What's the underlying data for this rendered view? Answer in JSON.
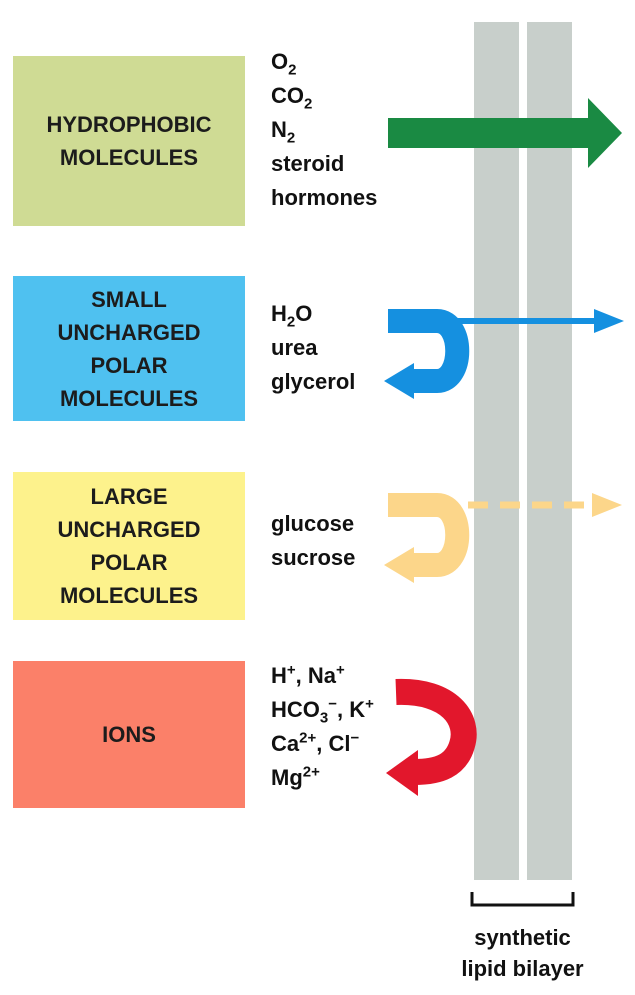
{
  "categories": [
    {
      "box_lines": [
        "HYDROPHOBIC",
        "MOLECULES"
      ],
      "box_color": "#cfdb94",
      "molecules": [
        {
          "base": "O",
          "sub": "2"
        },
        {
          "base": "CO",
          "sub": "2"
        },
        {
          "base": "N",
          "sub": "2"
        },
        {
          "base": "steroid"
        },
        {
          "base": "hormones"
        }
      ],
      "arrow_color": "#1a8a43",
      "outcome": "crosses"
    },
    {
      "box_lines": [
        "SMALL",
        "UNCHARGED",
        "POLAR",
        "MOLECULES"
      ],
      "box_color": "#4fc1f0",
      "molecules": [
        {
          "base": "H",
          "sub": "2",
          "tail": "O"
        },
        {
          "base": "urea"
        },
        {
          "base": "glycerol"
        }
      ],
      "arrow_color": "#1590e0",
      "outcome": "partial"
    },
    {
      "box_lines": [
        "LARGE",
        "UNCHARGED",
        "POLAR",
        "MOLECULES"
      ],
      "box_color": "#fdf28c",
      "molecules": [
        {
          "base": "glucose"
        },
        {
          "base": "sucrose"
        }
      ],
      "arrow_color": "#fcd68a",
      "outcome": "mostly-blocked"
    },
    {
      "box_lines": [
        "IONS"
      ],
      "box_color": "#fb8069",
      "molecules": [
        {
          "base": "H",
          "sup": "+",
          "tail": ", Na",
          "sup2": "+"
        },
        {
          "base": "HCO",
          "sub": "3",
          "sup": "−",
          "tail": ", K",
          "sup2": "+"
        },
        {
          "base": "Ca",
          "sup": "2+",
          "tail": ", Cl",
          "sup2": "−"
        },
        {
          "base": "Mg",
          "sup": "2+"
        }
      ],
      "arrow_color": "#e2172c",
      "outcome": "blocked"
    }
  ],
  "membrane": {
    "caption_lines": [
      "synthetic",
      "lipid bilayer"
    ],
    "leaflet_color": "#c8cfcb"
  }
}
